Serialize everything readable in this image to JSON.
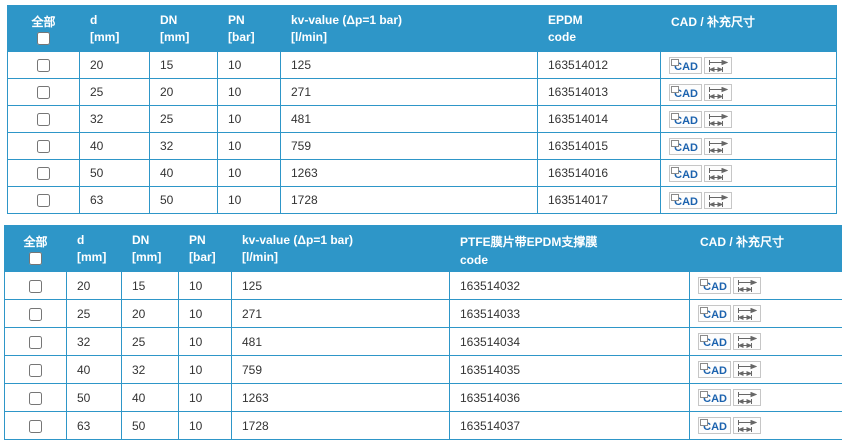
{
  "accent": {
    "header_bg": "#2E96C8",
    "table_border": "#2E96C8",
    "cad_text_color": "#1B62AE"
  },
  "columns": {
    "select_all": "全部",
    "d": "d",
    "d_unit": "[mm]",
    "dn": "DN",
    "dn_unit": "[mm]",
    "pn": "PN",
    "pn_unit": "[bar]",
    "kv": "kv-value (Δp=1 bar)",
    "kv_unit": "[l/min]",
    "cad": "CAD / 补充尺寸"
  },
  "icons": {
    "cad_label": "CAD",
    "cad_button": "cad-download-button",
    "dimension_button": "supplementary-dimensions-button"
  },
  "tables": [
    {
      "code_header_line1": "EPDM",
      "code_header_line2": "code",
      "rows": [
        {
          "d": "20",
          "dn": "15",
          "pn": "10",
          "kv": "125",
          "code": "163514012"
        },
        {
          "d": "25",
          "dn": "20",
          "pn": "10",
          "kv": "271",
          "code": "163514013"
        },
        {
          "d": "32",
          "dn": "25",
          "pn": "10",
          "kv": "481",
          "code": "163514014"
        },
        {
          "d": "40",
          "dn": "32",
          "pn": "10",
          "kv": "759",
          "code": "163514015"
        },
        {
          "d": "50",
          "dn": "40",
          "pn": "10",
          "kv": "1263",
          "code": "163514016"
        },
        {
          "d": "63",
          "dn": "50",
          "pn": "10",
          "kv": "1728",
          "code": "163514017"
        }
      ]
    },
    {
      "code_header_line1": "PTFE膜片带EPDM支撑膜",
      "code_header_line2": "code",
      "rows": [
        {
          "d": "20",
          "dn": "15",
          "pn": "10",
          "kv": "125",
          "code": "163514032"
        },
        {
          "d": "25",
          "dn": "20",
          "pn": "10",
          "kv": "271",
          "code": "163514033"
        },
        {
          "d": "32",
          "dn": "25",
          "pn": "10",
          "kv": "481",
          "code": "163514034"
        },
        {
          "d": "40",
          "dn": "32",
          "pn": "10",
          "kv": "759",
          "code": "163514035"
        },
        {
          "d": "50",
          "dn": "40",
          "pn": "10",
          "kv": "1263",
          "code": "163514036"
        },
        {
          "d": "63",
          "dn": "50",
          "pn": "10",
          "kv": "1728",
          "code": "163514037"
        }
      ]
    }
  ]
}
